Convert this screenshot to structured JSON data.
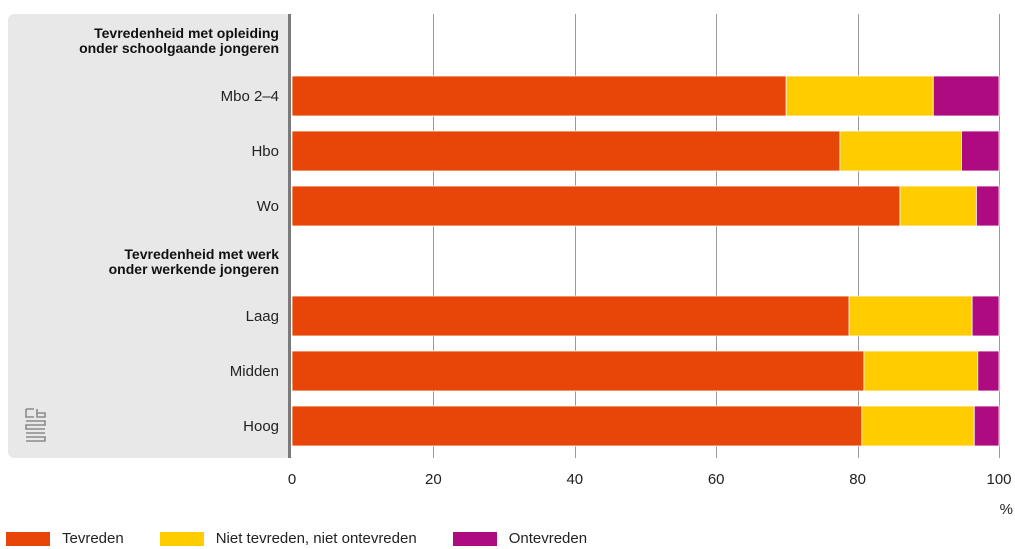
{
  "chart_data": {
    "type": "bar",
    "orientation": "horizontal",
    "stacked": true,
    "unit": "%",
    "xlim": [
      0,
      100
    ],
    "xticks": [
      "0",
      "20",
      "40",
      "60",
      "80",
      "100"
    ],
    "groups": [
      {
        "title_line1": "Tevredenheid met opleiding",
        "title_line2": "onder schoolgaande jongeren",
        "categories": [
          "Mbo 2–4",
          "Hbo",
          "Wo"
        ],
        "values": {
          "Tevreden": [
            69.9,
            77.5,
            86.0
          ],
          "Niet tevreden, niet ontevreden": [
            20.8,
            17.2,
            10.8
          ],
          "Ontevreden": [
            9.3,
            5.3,
            3.2
          ]
        }
      },
      {
        "title_line1": "Tevredenheid met werk",
        "title_line2": "onder werkende jongeren",
        "categories": [
          "Laag",
          "Midden",
          "Hoog"
        ],
        "values": {
          "Tevreden": [
            78.8,
            80.9,
            80.6
          ],
          "Niet tevreden, niet ontevreden": [
            17.4,
            16.1,
            15.9
          ],
          "Ontevreden": [
            3.8,
            3.0,
            3.5
          ]
        }
      }
    ],
    "series": [
      {
        "name": "Tevreden",
        "color": "#e84608"
      },
      {
        "name": "Niet tevreden, niet ontevreden",
        "color": "#ffcc00"
      },
      {
        "name": "Ontevreden",
        "color": "#af0b81"
      }
    ],
    "grid": true,
    "legend_position": "bottom-left"
  },
  "logo": {
    "icon": "cbs-logo-icon",
    "color": "#8a8a8a"
  }
}
